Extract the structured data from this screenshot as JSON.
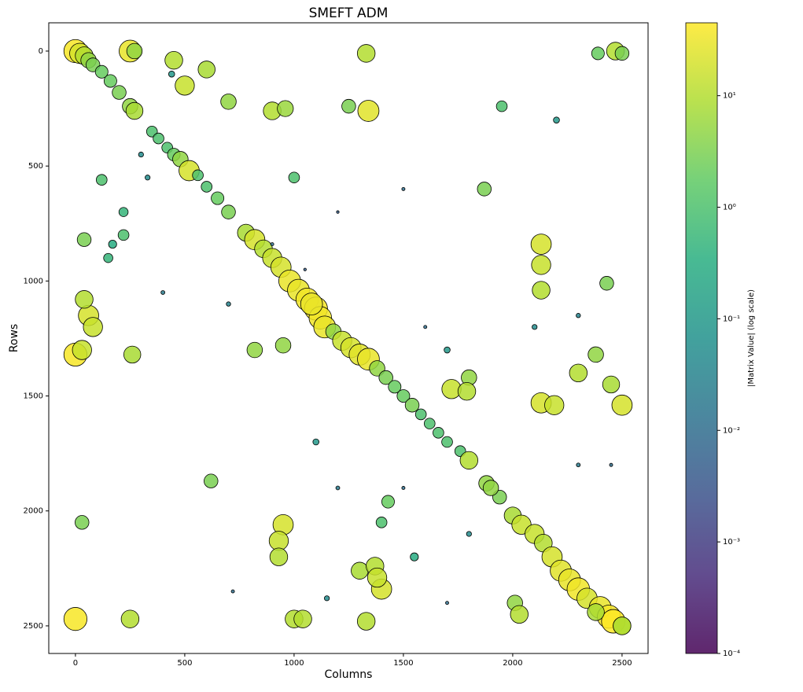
{
  "chart_data": {
    "type": "scatter",
    "title": "SMEFT ADM",
    "x_label": "Columns",
    "y_label": "Rows",
    "xlim": [
      -122,
      2619
    ],
    "ylim": [
      2620,
      -123
    ],
    "y_inverted": true,
    "xticks": [
      0,
      500,
      1000,
      1500,
      2000,
      2500
    ],
    "yticks": [
      0,
      500,
      1000,
      1500,
      2000,
      2500
    ],
    "colormap": "viridis",
    "edge_color": "#000000",
    "colorbar": {
      "label": "|Matrix Value| (log scale)",
      "log_scale": true,
      "clim": [
        0.0001,
        45
      ],
      "ticks": [
        {
          "value": 0.0001,
          "label": "10⁻⁴"
        },
        {
          "value": 0.001,
          "label": "10⁻³"
        },
        {
          "value": 0.01,
          "label": "10⁻²"
        },
        {
          "value": 0.1,
          "label": "10⁻¹"
        },
        {
          "value": 1,
          "label": "10⁰"
        },
        {
          "value": 10,
          "label": "10¹"
        }
      ]
    },
    "x": [
      0,
      20,
      40,
      60,
      80,
      120,
      160,
      200,
      250,
      270,
      350,
      380,
      420,
      450,
      480,
      520,
      560,
      600,
      650,
      700,
      780,
      820,
      860,
      900,
      940,
      980,
      1020,
      1060,
      1100,
      1120,
      1140,
      1180,
      1220,
      1260,
      1300,
      1340,
      1380,
      1420,
      1460,
      1500,
      1540,
      1580,
      1620,
      1660,
      1700,
      1760,
      1800,
      1880,
      1940,
      2000,
      2040,
      2100,
      2140,
      2180,
      2220,
      2260,
      2300,
      2340,
      2400,
      2440,
      2460,
      2500,
      250,
      270,
      450,
      1330,
      1340,
      1250,
      2470,
      2500,
      2390,
      1870,
      2130,
      2130,
      2130,
      2430,
      0,
      30,
      60,
      80,
      40,
      260,
      820,
      1080,
      950,
      1800,
      1720,
      1790,
      2130,
      2190,
      2500,
      2380,
      2300,
      2450,
      950,
      930,
      930,
      1300,
      1370,
      1400,
      1380,
      1330,
      1000,
      1040,
      0,
      250,
      2010,
      2030,
      2380,
      2500,
      620,
      30,
      120,
      220,
      220,
      40,
      150,
      170,
      440,
      500,
      600,
      700,
      900,
      960,
      300,
      330,
      900,
      1050,
      1600,
      1700,
      2100,
      2300,
      1100,
      1200,
      1500,
      1800,
      1700,
      2300,
      2450,
      400,
      700,
      1500,
      1200,
      1000,
      2200,
      1950,
      720,
      1150,
      1550,
      1900,
      1400,
      1430
    ],
    "y": [
      0,
      10,
      20,
      40,
      60,
      90,
      130,
      180,
      240,
      260,
      350,
      380,
      420,
      450,
      470,
      520,
      540,
      590,
      640,
      700,
      790,
      820,
      860,
      900,
      940,
      1000,
      1040,
      1080,
      1120,
      1160,
      1200,
      1220,
      1260,
      1290,
      1320,
      1340,
      1380,
      1420,
      1460,
      1500,
      1540,
      1580,
      1620,
      1660,
      1700,
      1740,
      1780,
      1880,
      1940,
      2020,
      2060,
      2100,
      2140,
      2200,
      2260,
      2300,
      2340,
      2380,
      2420,
      2460,
      2480,
      2500,
      0,
      0,
      40,
      10,
      260,
      240,
      0,
      10,
      10,
      600,
      840,
      930,
      1040,
      1010,
      1320,
      1300,
      1150,
      1200,
      1080,
      1320,
      1300,
      1100,
      1280,
      1420,
      1470,
      1480,
      1530,
      1540,
      1540,
      1320,
      1400,
      1450,
      2060,
      2130,
      2200,
      2260,
      2240,
      2340,
      2290,
      2480,
      2470,
      2470,
      2470,
      2470,
      2400,
      2450,
      2440,
      2500,
      1870,
      2050,
      560,
      700,
      800,
      820,
      900,
      840,
      100,
      150,
      80,
      220,
      260,
      250,
      450,
      550,
      840,
      950,
      1200,
      1300,
      1200,
      1150,
      1700,
      1900,
      1900,
      2100,
      2400,
      1800,
      1800,
      1050,
      1100,
      600,
      700,
      550,
      300,
      240,
      2350,
      2380,
      2200,
      1900,
      2050,
      1960
    ],
    "values": [
      40,
      20,
      10,
      5,
      3,
      2,
      2,
      3,
      5,
      8,
      1,
      1,
      1,
      2,
      5,
      20,
      1,
      1,
      2,
      3,
      8,
      20,
      10,
      15,
      20,
      30,
      30,
      35,
      40,
      35,
      30,
      5,
      15,
      20,
      25,
      30,
      5,
      3,
      2,
      2,
      3,
      1,
      1,
      1,
      1,
      1,
      10,
      5,
      3,
      8,
      15,
      15,
      10,
      20,
      25,
      30,
      35,
      20,
      30,
      40,
      45,
      10,
      30,
      5,
      10,
      10,
      25,
      3,
      10,
      3,
      2,
      3,
      20,
      15,
      10,
      3,
      40,
      15,
      20,
      15,
      10,
      8,
      5,
      30,
      5,
      5,
      15,
      10,
      20,
      15,
      20,
      5,
      10,
      8,
      20,
      15,
      10,
      8,
      10,
      20,
      15,
      10,
      10,
      10,
      40,
      10,
      5,
      10,
      8,
      10,
      3,
      3,
      1,
      0.5,
      1,
      3,
      0.5,
      0.3,
      0.1,
      15,
      8,
      5,
      10,
      6,
      0.05,
      0.05,
      0.01,
      0.005,
      0.01,
      0.1,
      0.05,
      0.03,
      0.1,
      0.02,
      0.01,
      0.05,
      0.01,
      0.02,
      0.01,
      0.02,
      0.03,
      0.01,
      0.005,
      1,
      0.1,
      1,
      0.01,
      0.05,
      0.3,
      5,
      1,
      2
    ]
  }
}
